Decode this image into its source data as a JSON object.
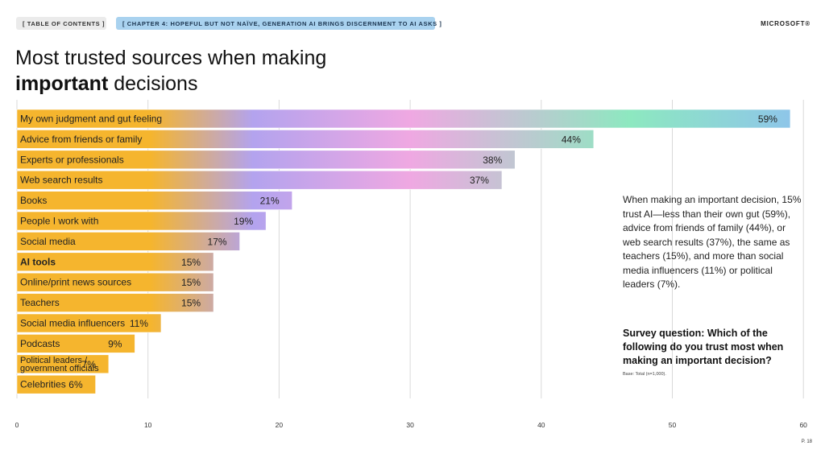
{
  "header": {
    "toc_label": "[  TABLE OF CONTENTS  ]",
    "chapter_label": "[   CHAPTER 4: HOPEFUL BUT NOT NAÏVE, GENERATION AI BRINGS DISCERNMENT TO AI ASKS   ]",
    "brand": "MICROSOFT®"
  },
  "title": {
    "line1": "Most trusted sources when making",
    "line2_bold": "important",
    "line2_rest": " decisions"
  },
  "description": "When making an important decision, 15% trust AI—less than their own gut (59%), advice from friends of family (44%), or web search results (37%), the same as teachers (15%), and more than social media influencers (11%) or political leaders (7%).",
  "survey_question": "Survey question: Which of the following do you trust most when making an important decision?",
  "base_note": "Base: Total (n=1,000).",
  "page_number": "P. 18",
  "colors": {
    "orange": "#f5b52e",
    "purple": "#b3a3ee",
    "pink": "#efa8e2",
    "green": "#8de8c0",
    "blue": "#8ec3ec",
    "grid": "#d9d9d9"
  },
  "chart_data": {
    "type": "bar",
    "orientation": "horizontal",
    "categories": [
      "My own judgment and gut feeling",
      "Advice from friends or family",
      "Experts or professionals",
      "Web search results",
      "Books",
      "People I work with",
      "Social media",
      "AI tools",
      "Online/print news sources",
      "Teachers",
      "Social media influencers",
      "Podcasts",
      "Political leaders  /  government officials",
      "Celebrities"
    ],
    "values": [
      59,
      44,
      38,
      37,
      21,
      19,
      17,
      15,
      15,
      15,
      11,
      9,
      7,
      6
    ],
    "value_labels": [
      "59%",
      "44%",
      "38%",
      "37%",
      "21%",
      "19%",
      "17%",
      "15%",
      "15%",
      "15%",
      "11%",
      "9%",
      "7%",
      "6%"
    ],
    "highlighted_category": "AI tools",
    "xlim": [
      0,
      60
    ],
    "xticks": [
      0,
      10,
      20,
      30,
      40,
      50,
      60
    ],
    "grid": true
  }
}
